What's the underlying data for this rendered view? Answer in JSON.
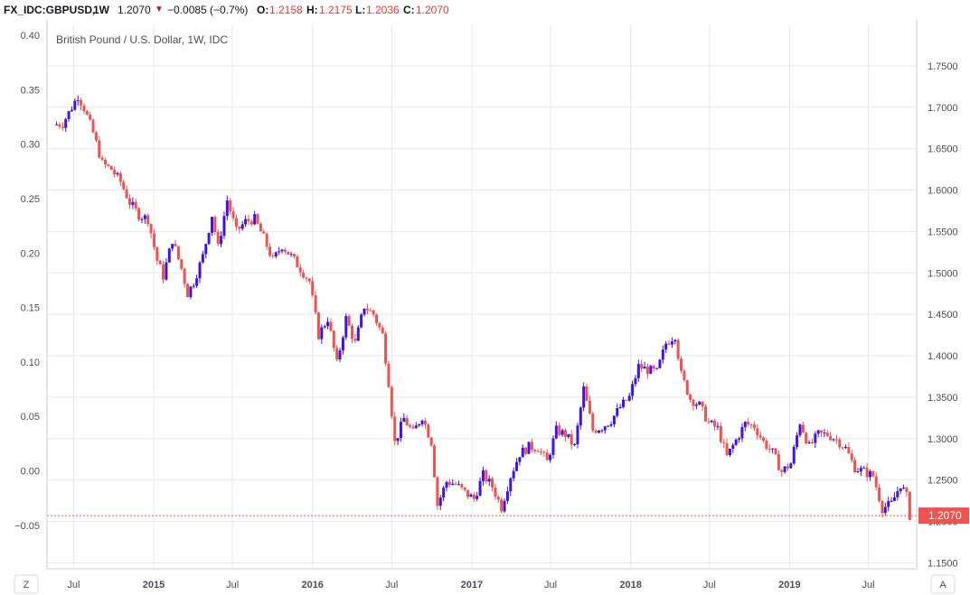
{
  "header": {
    "symbol": "FX_IDC:GBPUSD,",
    "interval": "1W",
    "last": "1.2070",
    "change": "−0.0085 (−0.7%)",
    "o_label": "O:",
    "o_value": "1.2158",
    "h_label": "H:",
    "h_value": "1.2175",
    "l_label": "L:",
    "l_value": "1.2036",
    "c_label": "C:",
    "c_value": "1.2070"
  },
  "chart_data": {
    "type": "candlestick",
    "title": "British Pound / U.S. Dollar, 1W, IDC",
    "colors": {
      "up": "#3f13e8",
      "down": "#ef5350",
      "grid": "#e6e9ee",
      "axis_text": "#4a4f5c",
      "price_line": "#ef5350"
    },
    "left_axis": {
      "range": [
        -0.09,
        0.41
      ],
      "ticks": [
        "0.40",
        "0.35",
        "0.30",
        "0.25",
        "0.20",
        "0.15",
        "0.10",
        "0.05",
        "0.00",
        "-0.05"
      ]
    },
    "right_axis": {
      "range": [
        1.1428,
        1.8
      ],
      "ticks": [
        "1.7500",
        "1.7000",
        "1.6500",
        "1.6000",
        "1.5500",
        "1.5000",
        "1.4500",
        "1.4000",
        "1.3500",
        "1.3000",
        "1.2500",
        "1.2000",
        "1.1500"
      ]
    },
    "x_range": [
      "2014-05-01",
      "2019-10-20"
    ],
    "x_ticks": [
      {
        "label": "Jul",
        "date": "2014-07-01"
      },
      {
        "label": "2015",
        "date": "2015-01-01"
      },
      {
        "label": "Jul",
        "date": "2015-07-01"
      },
      {
        "label": "2016",
        "date": "2016-01-01"
      },
      {
        "label": "Jul",
        "date": "2016-07-01"
      },
      {
        "label": "2017",
        "date": "2017-01-01"
      },
      {
        "label": "Jul",
        "date": "2017-07-01"
      },
      {
        "label": "2018",
        "date": "2018-01-01"
      },
      {
        "label": "Jul",
        "date": "2018-07-01"
      },
      {
        "label": "2019",
        "date": "2019-01-01"
      },
      {
        "label": "Jul",
        "date": "2019-07-01"
      }
    ],
    "last_price": {
      "value": 1.207,
      "label": "1.2070"
    },
    "corner_left": "Z",
    "corner_right": "A",
    "close_series": [
      {
        "date": "2014-05-16",
        "close": 1.679
      },
      {
        "date": "2014-06-06",
        "close": 1.68
      },
      {
        "date": "2014-06-27",
        "close": 1.7
      },
      {
        "date": "2014-07-11",
        "close": 1.714
      },
      {
        "date": "2014-07-25",
        "close": 1.699
      },
      {
        "date": "2014-08-15",
        "close": 1.669
      },
      {
        "date": "2014-09-05",
        "close": 1.632
      },
      {
        "date": "2014-09-26",
        "close": 1.625
      },
      {
        "date": "2014-10-17",
        "close": 1.61
      },
      {
        "date": "2014-11-07",
        "close": 1.585
      },
      {
        "date": "2014-11-28",
        "close": 1.57
      },
      {
        "date": "2014-12-19",
        "close": 1.565
      },
      {
        "date": "2015-01-09",
        "close": 1.515
      },
      {
        "date": "2015-01-23",
        "close": 1.496
      },
      {
        "date": "2015-02-13",
        "close": 1.54
      },
      {
        "date": "2015-03-06",
        "close": 1.505
      },
      {
        "date": "2015-03-20",
        "close": 1.475
      },
      {
        "date": "2015-04-03",
        "close": 1.489
      },
      {
        "date": "2015-04-24",
        "close": 1.52
      },
      {
        "date": "2015-05-15",
        "close": 1.57
      },
      {
        "date": "2015-05-29",
        "close": 1.53
      },
      {
        "date": "2015-06-19",
        "close": 1.588
      },
      {
        "date": "2015-07-10",
        "close": 1.55
      },
      {
        "date": "2015-07-31",
        "close": 1.562
      },
      {
        "date": "2015-08-21",
        "close": 1.565
      },
      {
        "date": "2015-09-11",
        "close": 1.542
      },
      {
        "date": "2015-10-02",
        "close": 1.515
      },
      {
        "date": "2015-10-23",
        "close": 1.533
      },
      {
        "date": "2015-11-13",
        "close": 1.52
      },
      {
        "date": "2015-12-04",
        "close": 1.505
      },
      {
        "date": "2015-12-25",
        "close": 1.49
      },
      {
        "date": "2016-01-15",
        "close": 1.425
      },
      {
        "date": "2016-02-05",
        "close": 1.445
      },
      {
        "date": "2016-02-26",
        "close": 1.39
      },
      {
        "date": "2016-03-18",
        "close": 1.445
      },
      {
        "date": "2016-04-08",
        "close": 1.415
      },
      {
        "date": "2016-04-29",
        "close": 1.46
      },
      {
        "date": "2016-05-20",
        "close": 1.45
      },
      {
        "date": "2016-06-10",
        "close": 1.425
      },
      {
        "date": "2016-06-24",
        "close": 1.368
      },
      {
        "date": "2016-07-08",
        "close": 1.295
      },
      {
        "date": "2016-07-29",
        "close": 1.324
      },
      {
        "date": "2016-08-19",
        "close": 1.307
      },
      {
        "date": "2016-09-09",
        "close": 1.327
      },
      {
        "date": "2016-09-30",
        "close": 1.296
      },
      {
        "date": "2016-10-14",
        "close": 1.22
      },
      {
        "date": "2016-11-04",
        "close": 1.248
      },
      {
        "date": "2016-11-25",
        "close": 1.245
      },
      {
        "date": "2016-12-16",
        "close": 1.235
      },
      {
        "date": "2017-01-06",
        "close": 1.227
      },
      {
        "date": "2017-01-27",
        "close": 1.256
      },
      {
        "date": "2017-02-17",
        "close": 1.242
      },
      {
        "date": "2017-03-10",
        "close": 1.217
      },
      {
        "date": "2017-03-31",
        "close": 1.255
      },
      {
        "date": "2017-04-21",
        "close": 1.282
      },
      {
        "date": "2017-05-12",
        "close": 1.29
      },
      {
        "date": "2017-06-02",
        "close": 1.289
      },
      {
        "date": "2017-06-23",
        "close": 1.272
      },
      {
        "date": "2017-07-14",
        "close": 1.31
      },
      {
        "date": "2017-08-04",
        "close": 1.305
      },
      {
        "date": "2017-08-25",
        "close": 1.29
      },
      {
        "date": "2017-09-15",
        "close": 1.36
      },
      {
        "date": "2017-10-06",
        "close": 1.31
      },
      {
        "date": "2017-10-27",
        "close": 1.314
      },
      {
        "date": "2017-11-17",
        "close": 1.322
      },
      {
        "date": "2017-12-08",
        "close": 1.338
      },
      {
        "date": "2017-12-29",
        "close": 1.35
      },
      {
        "date": "2018-01-19",
        "close": 1.387
      },
      {
        "date": "2018-02-09",
        "close": 1.383
      },
      {
        "date": "2018-03-02",
        "close": 1.38
      },
      {
        "date": "2018-03-23",
        "close": 1.415
      },
      {
        "date": "2018-04-13",
        "close": 1.425
      },
      {
        "date": "2018-04-27",
        "close": 1.377
      },
      {
        "date": "2018-05-18",
        "close": 1.348
      },
      {
        "date": "2018-06-08",
        "close": 1.34
      },
      {
        "date": "2018-06-29",
        "close": 1.319
      },
      {
        "date": "2018-07-20",
        "close": 1.312
      },
      {
        "date": "2018-08-10",
        "close": 1.278
      },
      {
        "date": "2018-08-31",
        "close": 1.298
      },
      {
        "date": "2018-09-21",
        "close": 1.318
      },
      {
        "date": "2018-10-12",
        "close": 1.315
      },
      {
        "date": "2018-11-02",
        "close": 1.296
      },
      {
        "date": "2018-11-23",
        "close": 1.283
      },
      {
        "date": "2018-12-14",
        "close": 1.26
      },
      {
        "date": "2019-01-04",
        "close": 1.27
      },
      {
        "date": "2019-01-25",
        "close": 1.32
      },
      {
        "date": "2019-02-15",
        "close": 1.29
      },
      {
        "date": "2019-03-08",
        "close": 1.305
      },
      {
        "date": "2019-03-29",
        "close": 1.305
      },
      {
        "date": "2019-04-19",
        "close": 1.299
      },
      {
        "date": "2019-05-10",
        "close": 1.288
      },
      {
        "date": "2019-05-31",
        "close": 1.265
      },
      {
        "date": "2019-06-21",
        "close": 1.26
      },
      {
        "date": "2019-07-12",
        "close": 1.255
      },
      {
        "date": "2019-08-02",
        "close": 1.216
      },
      {
        "date": "2019-08-23",
        "close": 1.221
      },
      {
        "date": "2019-09-13",
        "close": 1.245
      },
      {
        "date": "2019-09-27",
        "close": 1.23
      },
      {
        "date": "2019-10-04",
        "close": 1.207
      }
    ]
  }
}
